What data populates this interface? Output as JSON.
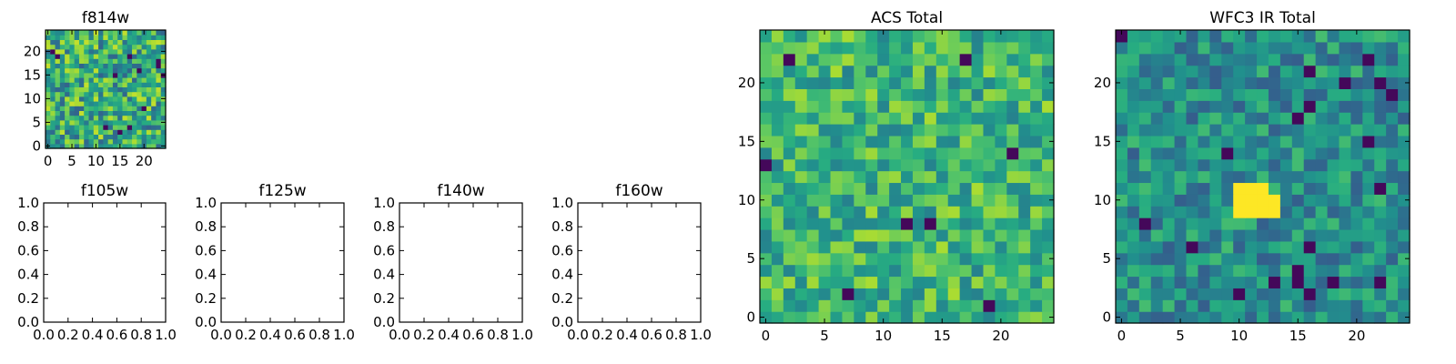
{
  "figure": {
    "colormap": "viridis"
  },
  "chart_data": [
    {
      "id": "f814w",
      "type": "heatmap",
      "title": "f814w",
      "grid": [
        25,
        25
      ],
      "xlim": [
        -0.5,
        24.5
      ],
      "ylim": [
        -0.5,
        24.5
      ],
      "xticks": [
        0,
        5,
        10,
        15,
        20
      ],
      "xtick_labels": [
        "0",
        "5",
        "10",
        "15",
        "20"
      ],
      "yticks": [
        0,
        5,
        10,
        15,
        20
      ],
      "ytick_labels": [
        "0",
        "5",
        "10",
        "15",
        "20"
      ],
      "value_range": [
        0,
        1
      ],
      "seed": 11,
      "mean": 0.62,
      "spread": 0.3,
      "dark_pixels": 12,
      "bright_region": null
    },
    {
      "id": "f105w",
      "type": "empty",
      "title": "f105w",
      "xlim": [
        0,
        1
      ],
      "ylim": [
        0,
        1
      ],
      "xtick_labels": [
        "0.0",
        "0.2",
        "0.4",
        "0.6",
        "0.8",
        "1.0"
      ],
      "ytick_labels": [
        "0.0",
        "0.2",
        "0.4",
        "0.6",
        "0.8",
        "1.0"
      ]
    },
    {
      "id": "f125w",
      "type": "empty",
      "title": "f125w",
      "xlim": [
        0,
        1
      ],
      "ylim": [
        0,
        1
      ],
      "xtick_labels": [
        "0.0",
        "0.2",
        "0.4",
        "0.6",
        "0.8",
        "1.0"
      ],
      "ytick_labels": [
        "0.0",
        "0.2",
        "0.4",
        "0.6",
        "0.8",
        "1.0"
      ]
    },
    {
      "id": "f140w",
      "type": "empty",
      "title": "f140w",
      "xlim": [
        0,
        1
      ],
      "ylim": [
        0,
        1
      ],
      "xtick_labels": [
        "0.0",
        "0.2",
        "0.4",
        "0.6",
        "0.8",
        "1.0"
      ],
      "ytick_labels": [
        "0.0",
        "0.2",
        "0.4",
        "0.6",
        "0.8",
        "1.0"
      ]
    },
    {
      "id": "f160w",
      "type": "empty",
      "title": "f160w",
      "xlim": [
        0,
        1
      ],
      "ylim": [
        0,
        1
      ],
      "xtick_labels": [
        "0.0",
        "0.2",
        "0.4",
        "0.6",
        "0.8",
        "1.0"
      ],
      "ytick_labels": [
        "0.0",
        "0.2",
        "0.4",
        "0.6",
        "0.8",
        "1.0"
      ]
    },
    {
      "id": "acs-total",
      "type": "heatmap",
      "title": "ACS Total",
      "grid": [
        25,
        25
      ],
      "xlim": [
        -0.5,
        24.5
      ],
      "ylim": [
        -0.5,
        24.5
      ],
      "xticks": [
        0,
        5,
        10,
        15,
        20
      ],
      "xtick_labels": [
        "0",
        "5",
        "10",
        "15",
        "20"
      ],
      "yticks": [
        0,
        5,
        10,
        15,
        20
      ],
      "ytick_labels": [
        "0",
        "5",
        "10",
        "15",
        "20"
      ],
      "value_range": [
        0,
        1
      ],
      "seed": 23,
      "mean": 0.66,
      "spread": 0.22,
      "dark_pixels": 8,
      "bright_region": null
    },
    {
      "id": "wfc3-ir-total",
      "type": "heatmap",
      "title": "WFC3 IR Total",
      "grid": [
        25,
        25
      ],
      "xlim": [
        -0.5,
        24.5
      ],
      "ylim": [
        -0.5,
        24.5
      ],
      "xticks": [
        0,
        5,
        10,
        15,
        20
      ],
      "xtick_labels": [
        "0",
        "5",
        "10",
        "15",
        "20"
      ],
      "yticks": [
        0,
        5,
        10,
        15,
        20
      ],
      "ytick_labels": [
        "0",
        "5",
        "10",
        "15",
        "20"
      ],
      "value_range": [
        0,
        1
      ],
      "seed": 37,
      "mean": 0.5,
      "spread": 0.2,
      "dark_pixels": 22,
      "bright_region": {
        "x": [
          10,
          13
        ],
        "y": [
          9,
          11
        ],
        "value": 1.0
      }
    }
  ]
}
